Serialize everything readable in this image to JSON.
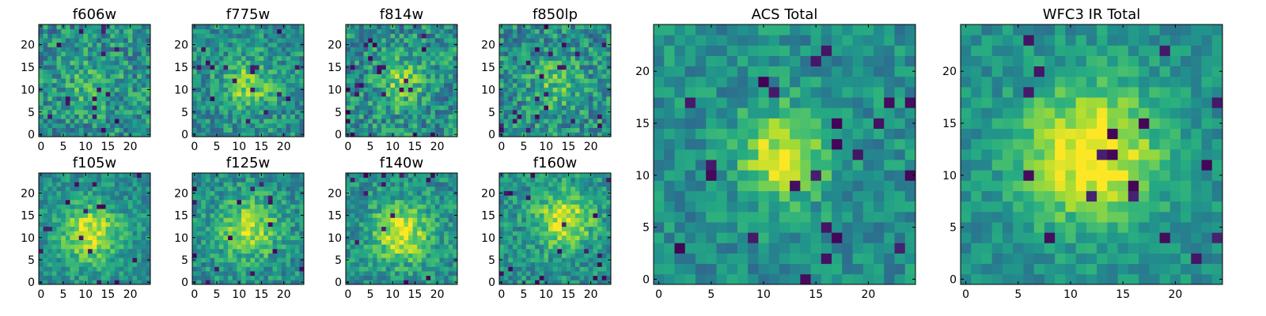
{
  "figure_title": "",
  "chart_data": [
    {
      "type": "heatmap",
      "title": "f606w",
      "extent": [
        -0.5,
        24.5
      ],
      "xticks": [
        0,
        5,
        10,
        15,
        20
      ],
      "yticks": [
        0,
        5,
        10,
        15,
        20
      ],
      "xtick_labels": [
        "0",
        "5",
        "10",
        "15",
        "20"
      ],
      "ytick_labels": [
        "0",
        "5",
        "10",
        "15",
        "20"
      ],
      "grid_size": 25,
      "center": [
        11,
        11
      ],
      "peak": 0.15,
      "spread": 4.0,
      "noise": 0.45,
      "holes": 0.03,
      "seed": 11,
      "colormap": "viridis"
    },
    {
      "type": "heatmap",
      "title": "f775w",
      "extent": [
        -0.5,
        24.5
      ],
      "xticks": [
        0,
        5,
        10,
        15,
        20
      ],
      "yticks": [
        0,
        5,
        10,
        15,
        20
      ],
      "xtick_labels": [
        "0",
        "5",
        "10",
        "15",
        "20"
      ],
      "ytick_labels": [
        "0",
        "5",
        "10",
        "15",
        "20"
      ],
      "grid_size": 25,
      "center": [
        12,
        11
      ],
      "peak": 0.3,
      "spread": 4.0,
      "noise": 0.4,
      "holes": 0.02,
      "seed": 23,
      "colormap": "viridis"
    },
    {
      "type": "heatmap",
      "title": "f814w",
      "extent": [
        -0.5,
        24.5
      ],
      "xticks": [
        0,
        5,
        10,
        15,
        20
      ],
      "yticks": [
        0,
        5,
        10,
        15,
        20
      ],
      "xtick_labels": [
        "0",
        "5",
        "10",
        "15",
        "20"
      ],
      "ytick_labels": [
        "0",
        "5",
        "10",
        "15",
        "20"
      ],
      "grid_size": 25,
      "center": [
        12,
        12
      ],
      "peak": 0.3,
      "spread": 3.5,
      "noise": 0.45,
      "holes": 0.04,
      "seed": 37,
      "colormap": "viridis"
    },
    {
      "type": "heatmap",
      "title": "f850lp",
      "extent": [
        -0.5,
        24.5
      ],
      "xticks": [
        0,
        5,
        10,
        15,
        20
      ],
      "yticks": [
        0,
        5,
        10,
        15,
        20
      ],
      "xtick_labels": [
        "0",
        "5",
        "10",
        "15",
        "20"
      ],
      "ytick_labels": [
        "0",
        "5",
        "10",
        "15",
        "20"
      ],
      "grid_size": 25,
      "center": [
        12,
        11
      ],
      "peak": 0.2,
      "spread": 4.0,
      "noise": 0.45,
      "holes": 0.03,
      "seed": 51,
      "colormap": "viridis"
    },
    {
      "type": "heatmap",
      "title": "f105w",
      "extent": [
        -0.5,
        24.5
      ],
      "xticks": [
        0,
        5,
        10,
        15,
        20
      ],
      "yticks": [
        0,
        5,
        10,
        15,
        20
      ],
      "xtick_labels": [
        "0",
        "5",
        "10",
        "15",
        "20"
      ],
      "ytick_labels": [
        "0",
        "5",
        "10",
        "15",
        "20"
      ],
      "grid_size": 25,
      "center": [
        11,
        11
      ],
      "peak": 0.45,
      "spread": 4.5,
      "noise": 0.3,
      "holes": 0.02,
      "seed": 67,
      "colormap": "viridis"
    },
    {
      "type": "heatmap",
      "title": "f125w",
      "extent": [
        -0.5,
        24.5
      ],
      "xticks": [
        0,
        5,
        10,
        15,
        20
      ],
      "yticks": [
        0,
        5,
        10,
        15,
        20
      ],
      "xtick_labels": [
        "0",
        "5",
        "10",
        "15",
        "20"
      ],
      "ytick_labels": [
        "0",
        "5",
        "10",
        "15",
        "20"
      ],
      "grid_size": 25,
      "center": [
        12,
        12
      ],
      "peak": 0.4,
      "spread": 4.5,
      "noise": 0.35,
      "holes": 0.03,
      "seed": 79,
      "colormap": "viridis"
    },
    {
      "type": "heatmap",
      "title": "f140w",
      "extent": [
        -0.5,
        24.5
      ],
      "xticks": [
        0,
        5,
        10,
        15,
        20
      ],
      "yticks": [
        0,
        5,
        10,
        15,
        20
      ],
      "xtick_labels": [
        "0",
        "5",
        "10",
        "15",
        "20"
      ],
      "ytick_labels": [
        "0",
        "5",
        "10",
        "15",
        "20"
      ],
      "grid_size": 25,
      "center": [
        12,
        11
      ],
      "peak": 0.45,
      "spread": 4.5,
      "noise": 0.35,
      "holes": 0.03,
      "seed": 97,
      "colormap": "viridis"
    },
    {
      "type": "heatmap",
      "title": "f160w",
      "extent": [
        -0.5,
        24.5
      ],
      "xticks": [
        0,
        5,
        10,
        15,
        20
      ],
      "yticks": [
        0,
        5,
        10,
        15,
        20
      ],
      "xtick_labels": [
        "0",
        "5",
        "10",
        "15",
        "20"
      ],
      "ytick_labels": [
        "0",
        "5",
        "10",
        "15",
        "20"
      ],
      "grid_size": 25,
      "center": [
        14,
        14
      ],
      "peak": 0.45,
      "spread": 4.5,
      "noise": 0.35,
      "holes": 0.03,
      "seed": 113,
      "colormap": "viridis"
    },
    {
      "type": "heatmap",
      "title": "ACS Total",
      "extent": [
        -0.5,
        24.5
      ],
      "xticks": [
        0,
        5,
        10,
        15,
        20
      ],
      "yticks": [
        0,
        5,
        10,
        15,
        20
      ],
      "xtick_labels": [
        "0",
        "5",
        "10",
        "15",
        "20"
      ],
      "ytick_labels": [
        "0",
        "5",
        "10",
        "15",
        "20"
      ],
      "grid_size": 25,
      "center": [
        12,
        12
      ],
      "peak": 0.45,
      "spread": 3.0,
      "noise": 0.3,
      "holes": 0.04,
      "seed": 131,
      "colormap": "viridis"
    },
    {
      "type": "heatmap",
      "title": "WFC3 IR Total",
      "extent": [
        -0.5,
        24.5
      ],
      "xticks": [
        0,
        5,
        10,
        15,
        20
      ],
      "yticks": [
        0,
        5,
        10,
        15,
        20
      ],
      "xtick_labels": [
        "0",
        "5",
        "10",
        "15",
        "20"
      ],
      "ytick_labels": [
        "0",
        "5",
        "10",
        "15",
        "20"
      ],
      "grid_size": 25,
      "center": [
        12,
        12
      ],
      "peak": 0.55,
      "spread": 4.5,
      "noise": 0.25,
      "holes": 0.03,
      "seed": 149,
      "colormap": "viridis"
    }
  ]
}
